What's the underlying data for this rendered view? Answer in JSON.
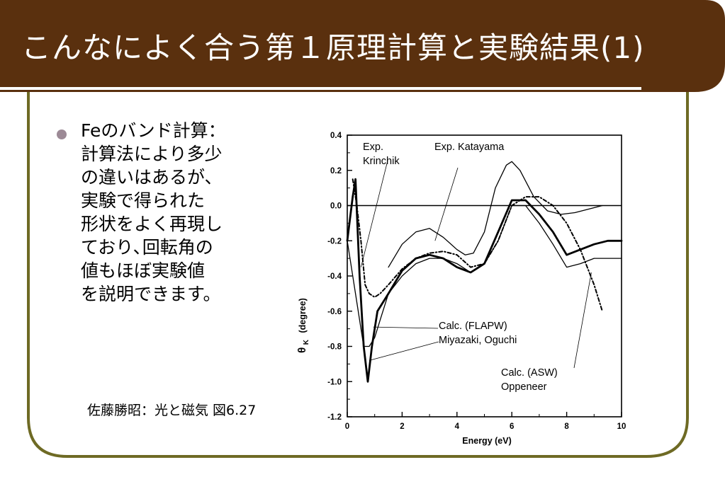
{
  "slide": {
    "title": "こんなによく合う第１原理計算と実験結果(1)",
    "colors": {
      "header": "#5a300e",
      "frame": "#6e6a24",
      "bullet": "#9c8a96"
    },
    "bullet_text": "Feのバンド計算：\n計算法により多少\nの違いはあるが、\n実験で得られた\n形状をよく再現し\nており､回転角の\n値もほぼ実験値\nを説明できます。",
    "caption": "佐藤勝昭：光と磁気 図6.27"
  },
  "chart_data": {
    "type": "line",
    "xlabel": "Energy (eV)",
    "ylabel": "θK (degree)",
    "ylabel_main": "θ",
    "ylabel_sub": "K",
    "ylabel_unit": "(degree)",
    "xlim": [
      0,
      10
    ],
    "ylim": [
      -1.2,
      0.4
    ],
    "xticks": [
      "0",
      "2",
      "4",
      "6",
      "8",
      "10"
    ],
    "yticks": [
      "0.4",
      "0.2",
      "0.0",
      "-0.2",
      "-0.4",
      "-0.6",
      "-0.8",
      "-1.0",
      "-1.2"
    ],
    "annotations": {
      "krinchik": "Exp.\nKrinchik",
      "katayama": "Exp. Katayama",
      "flapw": "Calc. (FLAPW)\nMiyazaki, Oguchi",
      "asw": "Calc. (ASW)\nOppeneer"
    },
    "series": [
      {
        "key": "exp_katayama",
        "style": "thin",
        "x": [
          1.5,
          2.0,
          2.5,
          3.0,
          3.5,
          4.0,
          4.3,
          4.6,
          5.0,
          5.4,
          5.8,
          6.0,
          6.3,
          6.8,
          7.3,
          7.8,
          8.3,
          8.8,
          9.3
        ],
        "y": [
          -0.35,
          -0.22,
          -0.15,
          -0.13,
          -0.18,
          -0.25,
          -0.28,
          -0.27,
          -0.15,
          0.1,
          0.23,
          0.25,
          0.2,
          0.05,
          -0.03,
          -0.05,
          -0.04,
          -0.02,
          0.0
        ]
      },
      {
        "key": "exp_krinchik",
        "style": "dashed",
        "x": [
          0.2,
          0.35,
          0.5,
          0.65,
          0.8,
          1.0,
          1.2,
          1.5,
          2.0,
          2.5,
          3.0,
          3.5,
          4.0,
          4.5,
          5.0,
          5.5,
          6.0,
          6.5,
          7.0,
          7.5,
          8.0,
          8.5,
          9.0,
          9.3
        ],
        "y": [
          0.15,
          0.0,
          -0.2,
          -0.45,
          -0.5,
          -0.52,
          -0.5,
          -0.45,
          -0.36,
          -0.3,
          -0.27,
          -0.26,
          -0.28,
          -0.35,
          -0.33,
          -0.2,
          0.0,
          0.05,
          0.05,
          0.0,
          -0.1,
          -0.25,
          -0.45,
          -0.6
        ]
      },
      {
        "key": "calc_flapw",
        "style": "bold",
        "x": [
          0.0,
          0.2,
          0.3,
          0.45,
          0.6,
          0.75,
          0.9,
          1.1,
          1.5,
          2.0,
          2.5,
          3.0,
          3.5,
          4.0,
          4.5,
          5.0,
          5.5,
          6.0,
          6.5,
          7.0,
          7.5,
          8.0,
          8.5,
          9.0,
          9.5,
          10.0
        ],
        "y": [
          -0.2,
          0.05,
          0.15,
          -0.4,
          -0.8,
          -1.0,
          -0.8,
          -0.6,
          -0.5,
          -0.37,
          -0.3,
          -0.28,
          -0.3,
          -0.35,
          -0.38,
          -0.33,
          -0.15,
          0.03,
          0.03,
          -0.05,
          -0.15,
          -0.28,
          -0.25,
          -0.22,
          -0.2,
          -0.2
        ]
      },
      {
        "key": "calc_asw",
        "style": "thin",
        "x": [
          0.0,
          0.3,
          0.6,
          0.8,
          1.0,
          1.2,
          1.5,
          2.0,
          2.5,
          3.0,
          3.5,
          4.0,
          4.5,
          5.0,
          5.5,
          6.0,
          6.5,
          7.0,
          7.5,
          8.0,
          8.5,
          9.0,
          9.5,
          10.0
        ],
        "y": [
          -0.2,
          -0.5,
          -0.8,
          -0.8,
          -0.75,
          -0.65,
          -0.5,
          -0.4,
          -0.33,
          -0.3,
          -0.3,
          -0.33,
          -0.38,
          -0.33,
          -0.2,
          0.0,
          0.0,
          -0.1,
          -0.22,
          -0.35,
          -0.33,
          -0.3,
          -0.3,
          -0.3
        ]
      }
    ]
  }
}
